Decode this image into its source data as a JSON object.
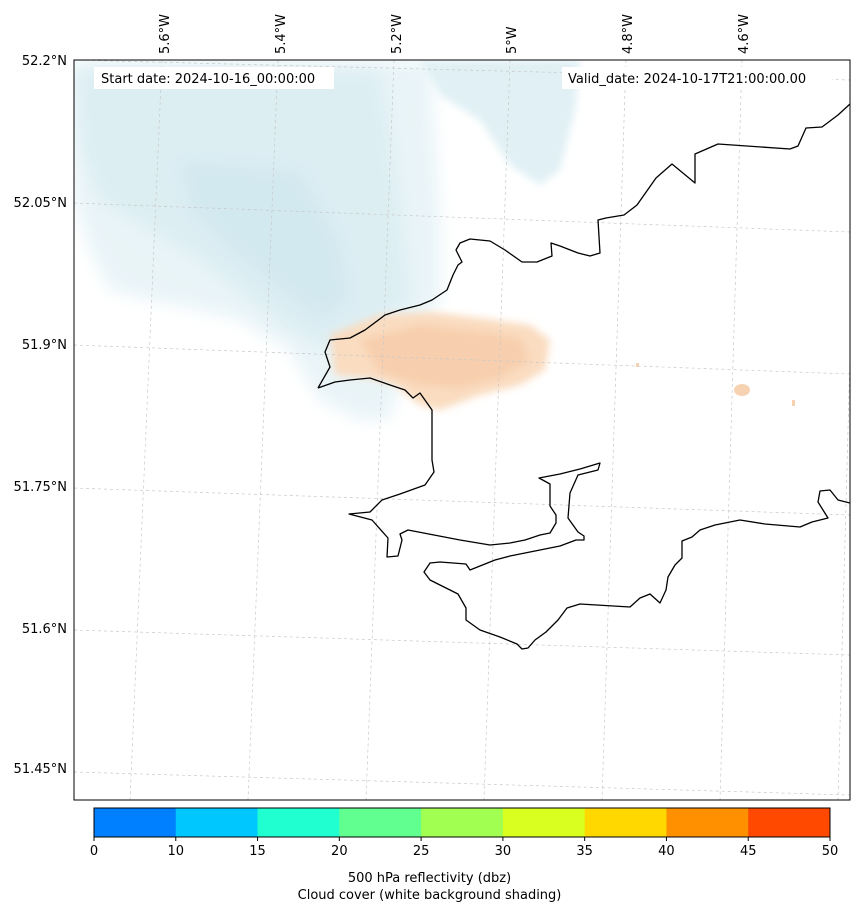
{
  "info": {
    "start_date": "Start date: 2024-10-16_00:00:00",
    "valid_date": "Valid_date: 2024-10-17T21:00:00.00"
  },
  "lon_labels": [
    "5.6°W",
    "5.4°W",
    "5.2°W",
    "5°W",
    "4.8°W",
    "4.6°W"
  ],
  "lat_labels": [
    "52.2°N",
    "52.05°N",
    "51.9°N",
    "51.75°N",
    "51.6°N",
    "51.45°N"
  ],
  "colorbar": {
    "ticks": [
      "0",
      "10",
      "15",
      "20",
      "25",
      "30",
      "35",
      "40",
      "45",
      "50"
    ],
    "colors": [
      "#0080ff",
      "#00c8ff",
      "#20ffd0",
      "#60ff90",
      "#a0ff50",
      "#d8ff20",
      "#ffd800",
      "#ff9000",
      "#ff4800"
    ],
    "label_line1": "500 hPa reflectivity (dbz)",
    "label_line2": "Cloud cover (white background shading)"
  },
  "colors": {
    "cloud": "#cfe8ef",
    "reflectivity": "#f8cfa8",
    "coast": "#000000",
    "grid": "#c8c8c8"
  }
}
